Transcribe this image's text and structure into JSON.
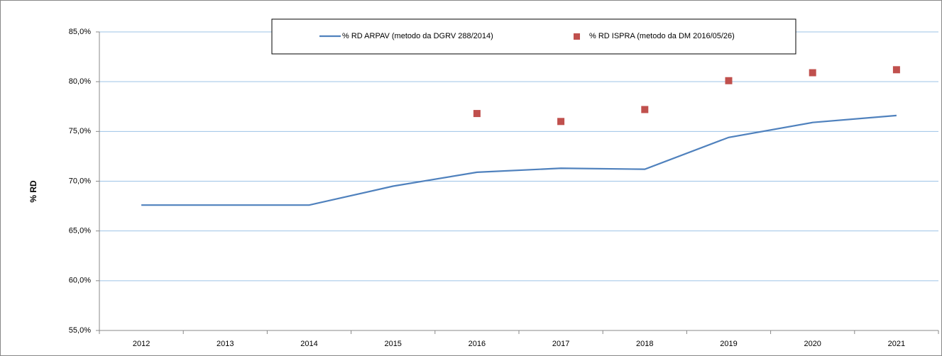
{
  "chart_data": {
    "type": "line",
    "y_label": "% RD",
    "categories": [
      "2012",
      "2013",
      "2014",
      "2015",
      "2016",
      "2017",
      "2018",
      "2019",
      "2020",
      "2021"
    ],
    "series": [
      {
        "name": "% RD ARPAV (metodo da DGRV 288/2014)",
        "color": "#4f81bd",
        "style": "line",
        "values": [
          67.6,
          67.6,
          67.6,
          69.5,
          70.9,
          71.3,
          71.2,
          74.4,
          75.9,
          76.6
        ]
      },
      {
        "name": "% RD ISPRA (metodo da DM 2016/05/26)",
        "color": "#c0504d",
        "style": "marker",
        "values": [
          null,
          null,
          null,
          null,
          76.8,
          76.0,
          77.2,
          80.1,
          80.9,
          81.2
        ]
      }
    ],
    "ylim": [
      55,
      85
    ],
    "yticks": [
      {
        "value": 55,
        "label": "55,0%"
      },
      {
        "value": 60,
        "label": "60,0%"
      },
      {
        "value": 65,
        "label": "65,0%"
      },
      {
        "value": 70,
        "label": "70,0%"
      },
      {
        "value": 75,
        "label": "75,0%"
      },
      {
        "value": 80,
        "label": "80,0%"
      },
      {
        "value": 85,
        "label": "85,0%"
      }
    ],
    "grid": true,
    "legend": "top"
  }
}
